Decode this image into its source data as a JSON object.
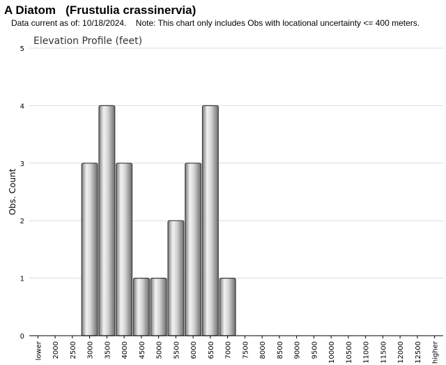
{
  "header": {
    "common_name": "A Diatom",
    "scientific_name": "(Frustulia crassinervia)",
    "note": "Data current as of: 10/18/2024.    Note: This chart only includes Obs with locational uncertainty <= 400 meters."
  },
  "chart_data": {
    "type": "bar",
    "title": "Elevation Profile (feet)",
    "xlabel": "",
    "ylabel": "Obs. Count",
    "ylim": [
      0,
      5
    ],
    "yticks": [
      0,
      1,
      2,
      3,
      4,
      5
    ],
    "grid": true,
    "categories": [
      "lower",
      "2000",
      "2500",
      "3000",
      "3500",
      "4000",
      "4500",
      "5000",
      "5500",
      "6000",
      "6500",
      "7000",
      "7500",
      "8000",
      "8500",
      "9000",
      "9500",
      "10000",
      "10500",
      "11000",
      "11500",
      "12000",
      "12500",
      "higher"
    ],
    "values": [
      0,
      0,
      0,
      3,
      4,
      3,
      1,
      1,
      2,
      3,
      4,
      1,
      0,
      0,
      0,
      0,
      0,
      0,
      0,
      0,
      0,
      0,
      0,
      0
    ]
  }
}
